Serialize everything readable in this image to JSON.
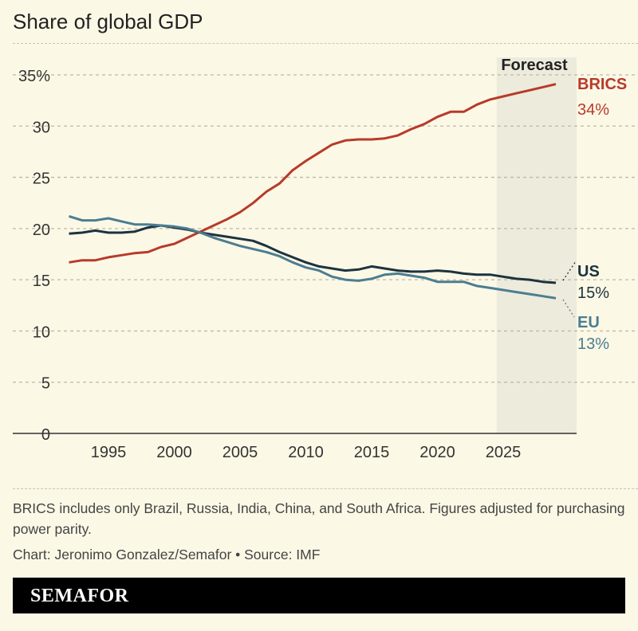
{
  "title": "Share of global GDP",
  "chart_data": {
    "type": "line",
    "title": "Share of global GDP",
    "xlabel": "",
    "ylabel": "",
    "xlim": [
      1992,
      2029
    ],
    "ylim": [
      0,
      35
    ],
    "yticks": [
      0,
      5,
      10,
      15,
      20,
      25,
      30,
      35
    ],
    "ytick_labels": [
      "0",
      "5",
      "10",
      "15",
      "20",
      "25",
      "30",
      "35%"
    ],
    "xticks": [
      1995,
      2000,
      2005,
      2010,
      2015,
      2020,
      2025
    ],
    "xtick_labels": [
      "1995",
      "2000",
      "2005",
      "2010",
      "2015",
      "2020",
      "2025"
    ],
    "grid": "horizontal dashed",
    "forecast": {
      "label": "Forecast",
      "from": 2024.5,
      "color": "#edebdc"
    },
    "x": [
      1992,
      1993,
      1994,
      1995,
      1996,
      1997,
      1998,
      1999,
      2000,
      2001,
      2002,
      2003,
      2004,
      2005,
      2006,
      2007,
      2008,
      2009,
      2010,
      2011,
      2012,
      2013,
      2014,
      2015,
      2016,
      2017,
      2018,
      2019,
      2020,
      2021,
      2022,
      2023,
      2024,
      2025,
      2026,
      2027,
      2028,
      2029
    ],
    "series": [
      {
        "name": "BRICS",
        "end_label": "34%",
        "color": "#b83a2a",
        "values": [
          16.7,
          16.9,
          16.9,
          17.2,
          17.4,
          17.6,
          17.7,
          18.2,
          18.5,
          19.1,
          19.7,
          20.3,
          20.9,
          21.6,
          22.5,
          23.6,
          24.4,
          25.7,
          26.6,
          27.4,
          28.2,
          28.6,
          28.7,
          28.7,
          28.8,
          29.1,
          29.7,
          30.2,
          30.9,
          31.4,
          31.4,
          32.1,
          32.6,
          32.9,
          33.2,
          33.5,
          33.8,
          34.1
        ]
      },
      {
        "name": "US",
        "end_label": "15%",
        "color": "#1c3340",
        "values": [
          19.5,
          19.6,
          19.8,
          19.6,
          19.6,
          19.7,
          20.1,
          20.3,
          20.1,
          19.9,
          19.6,
          19.4,
          19.2,
          19.0,
          18.8,
          18.3,
          17.7,
          17.2,
          16.7,
          16.3,
          16.1,
          15.9,
          16.0,
          16.3,
          16.1,
          15.9,
          15.8,
          15.8,
          15.9,
          15.8,
          15.6,
          15.5,
          15.5,
          15.3,
          15.1,
          15.0,
          14.8,
          14.7
        ]
      },
      {
        "name": "EU",
        "end_label": "13%",
        "color": "#4b7d91",
        "values": [
          21.2,
          20.8,
          20.8,
          21.0,
          20.7,
          20.4,
          20.4,
          20.3,
          20.2,
          20.0,
          19.6,
          19.1,
          18.7,
          18.3,
          18.0,
          17.7,
          17.3,
          16.7,
          16.2,
          15.9,
          15.3,
          15.0,
          14.9,
          15.1,
          15.5,
          15.6,
          15.4,
          15.2,
          14.8,
          14.8,
          14.8,
          14.4,
          14.2,
          14.0,
          13.8,
          13.6,
          13.4,
          13.2
        ]
      }
    ]
  },
  "note": "BRICS includes only Brazil, Russia, India, China, and South Africa. Figures adjusted for purchasing power parity.",
  "credit": "Chart: Jeronimo Gonzalez/Semafor • Source: IMF",
  "brand": "SEMAFOR"
}
